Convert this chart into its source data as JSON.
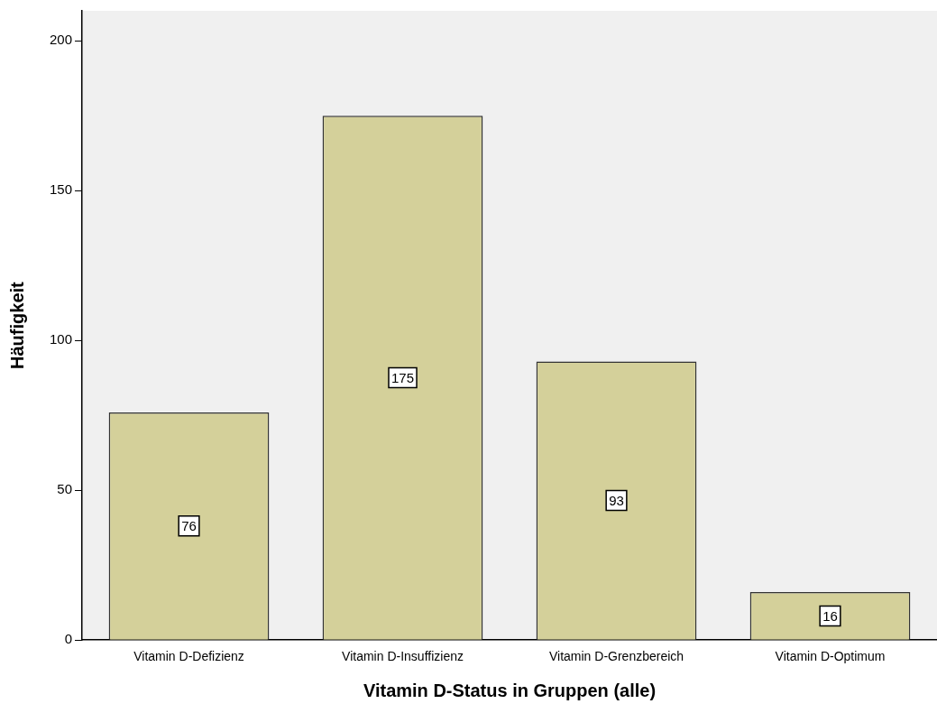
{
  "chart_data": {
    "type": "bar",
    "xlabel": "Vitamin D-Status in Gruppen (alle)",
    "ylabel": "Häufigkeit",
    "categories": [
      "Vitamin D-Defizienz",
      "Vitamin D-Insuffizienz",
      "Vitamin D-Grenzbereich",
      "Vitamin D-Optimum"
    ],
    "values": [
      76,
      175,
      93,
      16
    ],
    "color": "#d4d09a",
    "ylim": [
      0,
      210
    ],
    "yticks": [
      0,
      50,
      100,
      150,
      200
    ],
    "grid": false,
    "legend": false,
    "data_labels": true
  }
}
